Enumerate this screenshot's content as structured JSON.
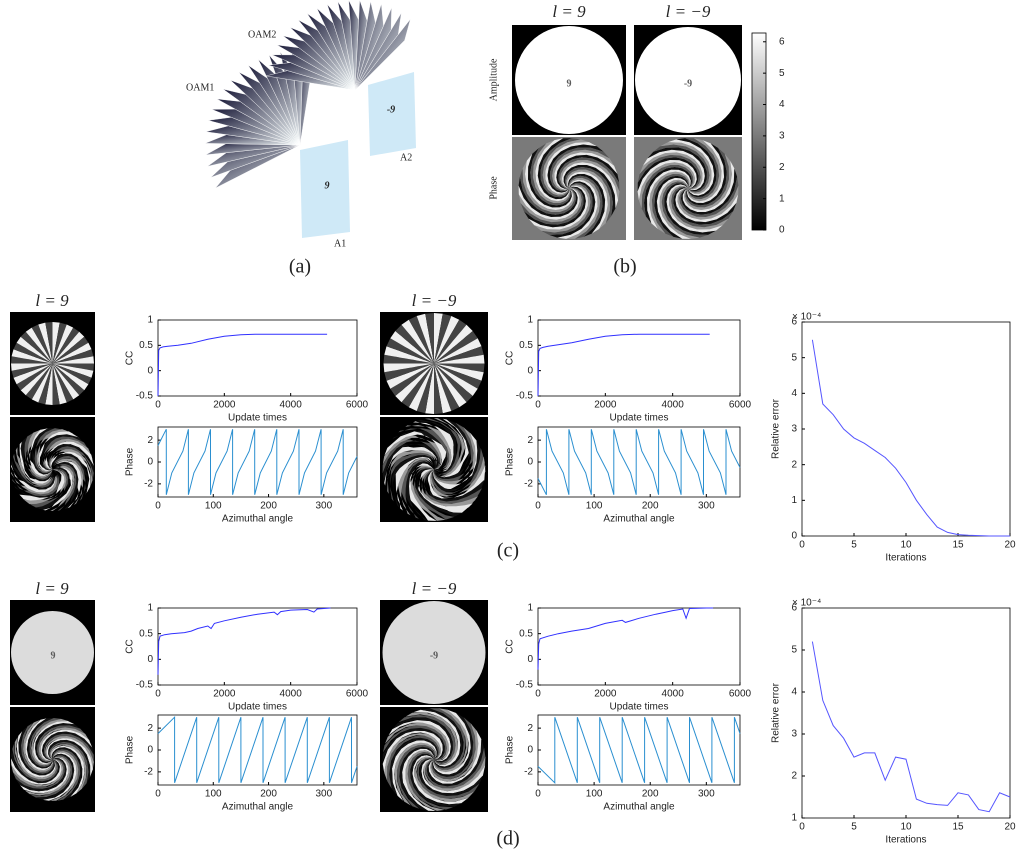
{
  "panel_a": {
    "label": "(a)",
    "beams": [
      "OAM1",
      "OAM2"
    ],
    "apertures": [
      "A1",
      "A2"
    ],
    "digits": [
      "9",
      "-9"
    ]
  },
  "panel_b": {
    "label": "(b)",
    "titles": [
      "l = 9",
      "l = −9"
    ],
    "rows": [
      "Amplitude",
      "Phase"
    ],
    "digits": [
      "9",
      "-9"
    ],
    "colorbar": {
      "ylim": [
        0,
        6.28
      ],
      "yticks": [
        0,
        1,
        2,
        3,
        4,
        5,
        6
      ]
    }
  },
  "panel_c": {
    "label": "(c)",
    "titles": [
      "l = 9",
      "l = −9"
    ]
  },
  "panel_d": {
    "label": "(d)",
    "titles": [
      "l = 9",
      "l = −9"
    ],
    "digits": [
      "9",
      "-9"
    ]
  },
  "chart_data": [
    {
      "type": "line",
      "x_label": "Update times",
      "y_label": "CC",
      "color": "#3030ff",
      "x": [
        0,
        20,
        60,
        150,
        300,
        600,
        1000,
        1500,
        2000,
        2500,
        3000,
        4000,
        5100
      ],
      "values": [
        -0.5,
        0.4,
        0.45,
        0.47,
        0.48,
        0.5,
        0.54,
        0.62,
        0.68,
        0.71,
        0.72,
        0.72,
        0.72
      ],
      "xlim": [
        0,
        6000
      ],
      "ylim": [
        -0.5,
        1
      ],
      "xticks": [
        0,
        2000,
        4000,
        6000
      ],
      "yticks": [
        -0.5,
        0,
        0.5,
        1
      ]
    },
    {
      "type": "line",
      "x_label": "Azimuthal angle",
      "y_label": "Phase",
      "color": "#2a8fd0",
      "x": [
        0,
        15,
        15,
        25,
        45,
        55,
        55,
        65,
        85,
        95,
        95,
        105,
        125,
        135,
        135,
        145,
        165,
        175,
        175,
        185,
        205,
        215,
        215,
        225,
        245,
        255,
        255,
        265,
        285,
        295,
        295,
        305,
        325,
        335,
        335,
        345,
        360
      ],
      "values": [
        1.5,
        3,
        -3,
        -1,
        1,
        3,
        -3,
        -1,
        1,
        3,
        -3,
        -1,
        1,
        3,
        -3,
        -1,
        1,
        3,
        -3,
        -1,
        1,
        3,
        -3,
        -1,
        1,
        3,
        -3,
        -1,
        1,
        3,
        -3,
        -1,
        1,
        3,
        -3,
        -1,
        0.5
      ],
      "xlim": [
        0,
        360
      ],
      "ylim": [
        -3.2,
        3.2
      ],
      "xticks": [
        0,
        100,
        200,
        300
      ],
      "yticks": [
        -2,
        0,
        2
      ]
    },
    {
      "type": "line",
      "x_label": "Update times",
      "y_label": "CC",
      "color": "#3030ff",
      "x": [
        0,
        20,
        60,
        150,
        300,
        600,
        1000,
        1500,
        2000,
        2500,
        3000,
        4000,
        5100
      ],
      "values": [
        -0.5,
        0.38,
        0.44,
        0.46,
        0.48,
        0.51,
        0.55,
        0.62,
        0.68,
        0.71,
        0.72,
        0.72,
        0.72
      ],
      "xlim": [
        0,
        6000
      ],
      "ylim": [
        -0.5,
        1
      ],
      "xticks": [
        0,
        2000,
        4000,
        6000
      ],
      "yticks": [
        -0.5,
        0,
        0.5,
        1
      ]
    },
    {
      "type": "line",
      "x_label": "Azimuthal angle",
      "y_label": "Phase",
      "color": "#2a8fd0",
      "x": [
        0,
        15,
        15,
        25,
        45,
        55,
        55,
        65,
        85,
        95,
        95,
        105,
        125,
        135,
        135,
        145,
        165,
        175,
        175,
        185,
        205,
        215,
        215,
        225,
        245,
        255,
        255,
        265,
        285,
        295,
        295,
        305,
        325,
        335,
        335,
        345,
        360
      ],
      "values": [
        -1.5,
        -3,
        3,
        1,
        -1,
        -3,
        3,
        1,
        -1,
        -3,
        3,
        1,
        -1,
        -3,
        3,
        1,
        -1,
        -3,
        3,
        1,
        -1,
        -3,
        3,
        1,
        -1,
        -3,
        3,
        1,
        -1,
        -3,
        3,
        1,
        -1,
        -3,
        3,
        1,
        -0.5
      ],
      "xlim": [
        0,
        360
      ],
      "ylim": [
        -3.2,
        3.2
      ],
      "xticks": [
        0,
        100,
        200,
        300
      ],
      "yticks": [
        -2,
        0,
        2
      ]
    },
    {
      "type": "line",
      "x_label": "Iterations",
      "y_label": "Relative error",
      "y_exponent": "× 10⁻⁴",
      "color": "#5555ff",
      "x": [
        1,
        2,
        3,
        4,
        5,
        6,
        7,
        8,
        9,
        10,
        11,
        12,
        13,
        14,
        15,
        16,
        17,
        18,
        19,
        20
      ],
      "values": [
        5.5,
        3.7,
        3.4,
        3.0,
        2.75,
        2.6,
        2.4,
        2.2,
        1.9,
        1.5,
        1.0,
        0.6,
        0.25,
        0.1,
        0.04,
        0.02,
        0.01,
        0,
        0,
        0
      ],
      "xlim": [
        0,
        20
      ],
      "ylim": [
        0,
        6
      ],
      "xticks": [
        0,
        5,
        10,
        15,
        20
      ],
      "yticks": [
        0,
        1,
        2,
        3,
        4,
        5,
        6
      ]
    },
    {
      "type": "line",
      "x_label": "Update times",
      "y_label": "CC",
      "color": "#3030ff",
      "x": [
        0,
        20,
        60,
        200,
        400,
        800,
        1000,
        1200,
        1500,
        1600,
        1700,
        2000,
        2500,
        3000,
        3500,
        3600,
        3700,
        4000,
        4500,
        4700,
        4800,
        5000,
        5200
      ],
      "values": [
        -0.3,
        0.35,
        0.45,
        0.48,
        0.5,
        0.52,
        0.55,
        0.6,
        0.65,
        0.6,
        0.7,
        0.75,
        0.82,
        0.88,
        0.92,
        0.87,
        0.93,
        0.96,
        0.97,
        0.92,
        0.98,
        0.99,
        1.0
      ],
      "xlim": [
        0,
        6000
      ],
      "ylim": [
        -0.5,
        1
      ],
      "xticks": [
        0,
        2000,
        4000,
        6000
      ],
      "yticks": [
        -0.5,
        0,
        0.5,
        1
      ]
    },
    {
      "type": "line",
      "x_label": "Azimuthal angle",
      "y_label": "Phase",
      "color": "#2a8fd0",
      "x": [
        0,
        30,
        30,
        70,
        70,
        110,
        110,
        150,
        150,
        190,
        190,
        230,
        230,
        270,
        270,
        310,
        310,
        350,
        350,
        360
      ],
      "values": [
        1.5,
        3,
        -3,
        3,
        -3,
        3,
        -3,
        3,
        -3,
        3,
        -3,
        3,
        -3,
        3,
        -3,
        3,
        -3,
        3,
        -3,
        -1.5
      ],
      "xlim": [
        0,
        360
      ],
      "ylim": [
        -3.2,
        3.2
      ],
      "xticks": [
        0,
        100,
        200,
        300
      ],
      "yticks": [
        -2,
        0,
        2
      ]
    },
    {
      "type": "line",
      "x_label": "Update times",
      "y_label": "CC",
      "color": "#3030ff",
      "x": [
        0,
        20,
        60,
        300,
        600,
        1000,
        1500,
        2000,
        2500,
        2600,
        3000,
        3500,
        3800,
        4000,
        4300,
        4400,
        4500,
        5000,
        5200
      ],
      "values": [
        -0.2,
        0.3,
        0.4,
        0.45,
        0.5,
        0.55,
        0.6,
        0.7,
        0.76,
        0.72,
        0.8,
        0.88,
        0.92,
        0.95,
        0.98,
        0.8,
        0.99,
        1.0,
        1.0
      ],
      "xlim": [
        0,
        6000
      ],
      "ylim": [
        -0.5,
        1
      ],
      "xticks": [
        0,
        2000,
        4000,
        6000
      ],
      "yticks": [
        -0.5,
        0,
        0.5,
        1
      ]
    },
    {
      "type": "line",
      "x_label": "Azimuthal angle",
      "y_label": "Phase",
      "color": "#2a8fd0",
      "x": [
        0,
        30,
        30,
        70,
        70,
        110,
        110,
        150,
        150,
        190,
        190,
        230,
        230,
        270,
        270,
        310,
        310,
        350,
        350,
        360
      ],
      "values": [
        -1.5,
        -3,
        3,
        -3,
        3,
        -3,
        3,
        -3,
        3,
        -3,
        3,
        -3,
        3,
        -3,
        3,
        -3,
        3,
        -3,
        3,
        1.5
      ],
      "xlim": [
        0,
        360
      ],
      "ylim": [
        -3.2,
        3.2
      ],
      "xticks": [
        0,
        100,
        200,
        300
      ],
      "yticks": [
        -2,
        0,
        2
      ]
    },
    {
      "type": "line",
      "x_label": "Iterations",
      "y_label": "Relative error",
      "y_exponent": "× 10⁻⁴",
      "color": "#5555ff",
      "x": [
        1,
        2,
        3,
        4,
        5,
        6,
        7,
        8,
        9,
        10,
        11,
        12,
        13,
        14,
        15,
        16,
        17,
        18,
        19,
        20
      ],
      "values": [
        5.2,
        3.8,
        3.2,
        2.9,
        2.45,
        2.55,
        2.55,
        1.9,
        2.45,
        2.4,
        1.45,
        1.35,
        1.32,
        1.3,
        1.6,
        1.55,
        1.2,
        1.15,
        1.6,
        1.5
      ],
      "xlim": [
        0,
        20
      ],
      "ylim": [
        1,
        6
      ],
      "xticks": [
        0,
        5,
        10,
        15,
        20
      ],
      "yticks": [
        1,
        2,
        3,
        4,
        5,
        6
      ]
    }
  ]
}
